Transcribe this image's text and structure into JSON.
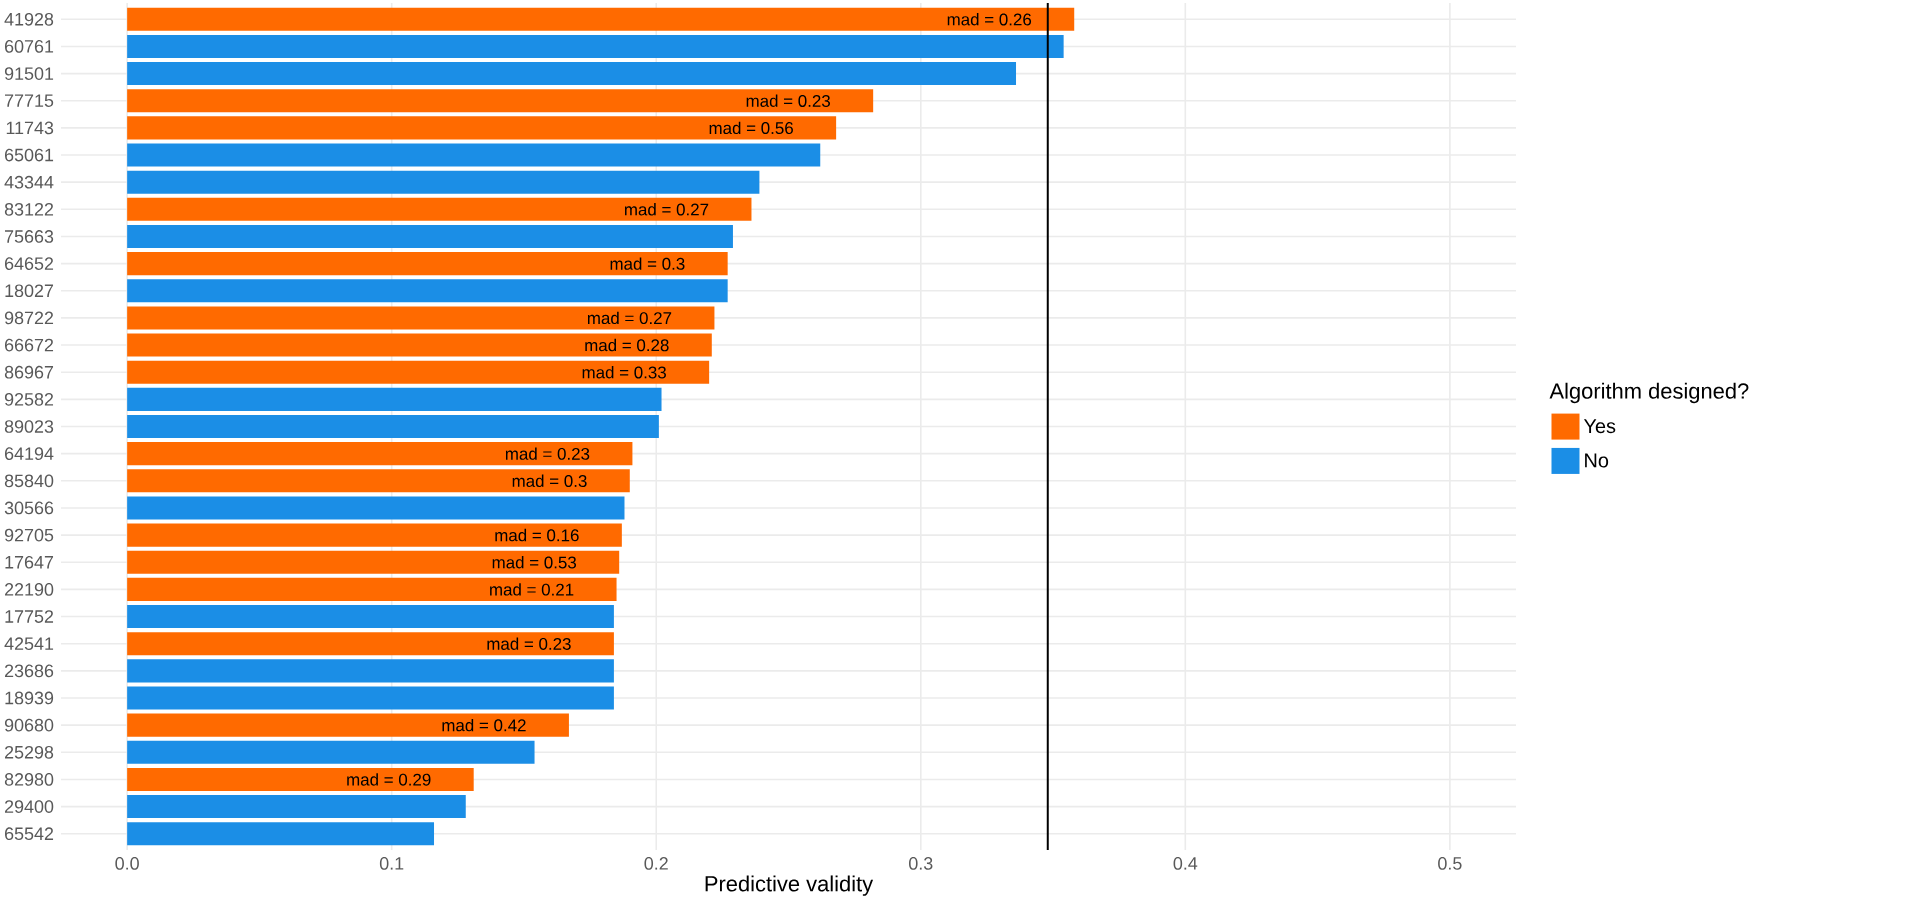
{
  "chart_data": {
    "type": "bar",
    "orientation": "horizontal",
    "xlabel": "Predictive validity",
    "legend_title": "Algorithm designed?",
    "categories": [
      "41928",
      "60761",
      "91501",
      "77715",
      "11743",
      "65061",
      "43344",
      "83122",
      "75663",
      "64652",
      "18027",
      "98722",
      "66672",
      "86967",
      "92582",
      "89023",
      "64194",
      "85840",
      "30566",
      "92705",
      "17647",
      "22190",
      "17752",
      "42541",
      "23686",
      "18939",
      "90680",
      "25298",
      "82980",
      "29400",
      "65542"
    ],
    "series": [
      {
        "name": "Yes",
        "color": "#ff6a00",
        "values": [
          0.358,
          null,
          null,
          0.282,
          0.268,
          null,
          null,
          0.236,
          null,
          0.227,
          null,
          0.222,
          0.221,
          0.22,
          null,
          null,
          0.191,
          0.19,
          null,
          0.187,
          0.186,
          0.185,
          null,
          0.184,
          null,
          null,
          0.167,
          null,
          0.131,
          null,
          null
        ]
      },
      {
        "name": "No",
        "color": "#1b8ee6",
        "values": [
          null,
          0.354,
          0.336,
          null,
          null,
          0.262,
          0.239,
          null,
          0.229,
          null,
          0.227,
          null,
          null,
          null,
          0.202,
          0.201,
          null,
          null,
          0.188,
          null,
          null,
          null,
          0.184,
          null,
          0.184,
          0.184,
          null,
          0.154,
          null,
          0.128,
          0.116
        ]
      }
    ],
    "xlim": [
      -0.025,
      0.525
    ],
    "xticks": [
      {
        "value": 0,
        "label": "0.0"
      },
      0.1,
      0.2,
      0.3,
      0.4,
      0.5
    ],
    "ref_lines": [
      {
        "axis": "x",
        "value": 0.348,
        "color": "#000000"
      }
    ],
    "annotations": [
      {
        "text": "mad =  0.26",
        "x": 0.358,
        "y": "41928"
      },
      {
        "text": "mad =  0.23",
        "x": 0.282,
        "y": "77715"
      },
      {
        "text": "mad =  0.56",
        "x": 0.268,
        "y": "11743"
      },
      {
        "text": "mad =  0.27",
        "x": 0.236,
        "y": "83122"
      },
      {
        "text": "mad =  0.3",
        "x": 0.227,
        "y": "64652"
      },
      {
        "text": "mad =  0.27",
        "x": 0.222,
        "y": "98722"
      },
      {
        "text": "mad =  0.28",
        "x": 0.221,
        "y": "66672"
      },
      {
        "text": "mad =  0.33",
        "x": 0.22,
        "y": "86967"
      },
      {
        "text": "mad =  0.23",
        "x": 0.191,
        "y": "64194"
      },
      {
        "text": "mad =  0.3",
        "x": 0.19,
        "y": "85840"
      },
      {
        "text": "mad =  0.16",
        "x": 0.187,
        "y": "92705"
      },
      {
        "text": "mad =  0.53",
        "x": 0.186,
        "y": "17647"
      },
      {
        "text": "mad =  0.21",
        "x": 0.185,
        "y": "22190"
      },
      {
        "text": "mad =  0.23",
        "x": 0.184,
        "y": "42541"
      },
      {
        "text": "mad =  0.42",
        "x": 0.167,
        "y": "90680"
      },
      {
        "text": "mad =  0.29",
        "x": 0.131,
        "y": "82980"
      }
    ],
    "grid": true,
    "legend": "right"
  }
}
